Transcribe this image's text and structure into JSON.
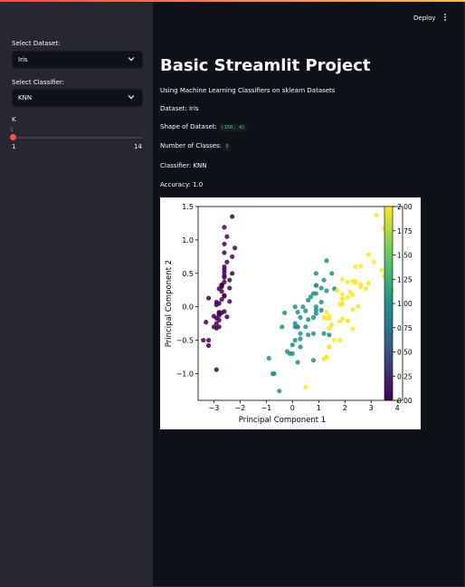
{
  "sidebar": {
    "dataset_label": "Select Dataset:",
    "dataset_value": "Iris",
    "classifier_label": "Select Classifier:",
    "classifier_value": "KNN",
    "k_label": "K",
    "k_value": "1",
    "k_min": "1",
    "k_max": "14"
  },
  "header": {
    "deploy_label": "Deploy"
  },
  "main": {
    "title": "Basic Streamlit Project",
    "subtitle": "Using Machine Learning Classifiers on sklearn Datasets",
    "dataset_text": "Dataset: Iris",
    "shape_label": "Shape of Dataset:",
    "shape_value": "(150, 4)",
    "classes_label": "Number of Classes:",
    "classes_value": "3",
    "classifier_text": "Classifier: KNN",
    "accuracy_text": "Accuracy: 1.0"
  },
  "colors": {
    "accent": "#ff4b4b",
    "class0": "#440154",
    "class1": "#21918c",
    "class2": "#fde725"
  },
  "chart_data": {
    "type": "scatter",
    "title": "",
    "xlabel": "Principal Component 1",
    "ylabel": "Principal Component 2",
    "xlim": [
      -3.6,
      4.2
    ],
    "ylim": [
      -1.4,
      1.5
    ],
    "xticks": [
      "−3",
      "−2",
      "−1",
      "0",
      "1",
      "2",
      "3",
      "4"
    ],
    "xtick_values": [
      -3,
      -2,
      -1,
      0,
      1,
      2,
      3,
      4
    ],
    "yticks": [
      "−1.0",
      "−0.5",
      "0.0",
      "0.5",
      "1.0",
      "1.5"
    ],
    "ytick_values": [
      -1.0,
      -0.5,
      0.0,
      0.5,
      1.0,
      1.5
    ],
    "colorbar_ticks": [
      "0.00",
      "0.25",
      "0.50",
      "0.75",
      "1.00",
      "1.25",
      "1.50",
      "1.75",
      "2.00"
    ],
    "colorbar_range": [
      0,
      2
    ],
    "colormap": "viridis",
    "grid": false,
    "series": [
      {
        "class": 0,
        "points": [
          [
            -2.7,
            0.32
          ],
          [
            -2.9,
            -0.17
          ],
          [
            -3.0,
            -0.14
          ],
          [
            -2.9,
            -0.32
          ],
          [
            -2.7,
            0.33
          ],
          [
            -2.3,
            0.75
          ],
          [
            -2.8,
            -0.08
          ],
          [
            -2.6,
            0.16
          ],
          [
            -3.2,
            -0.5
          ],
          [
            -2.8,
            -0.2
          ],
          [
            -2.5,
            0.67
          ],
          [
            -2.7,
            0.11
          ],
          [
            -2.9,
            -0.25
          ],
          [
            -3.4,
            -0.5
          ],
          [
            -2.6,
            1.19
          ],
          [
            -2.3,
            1.35
          ],
          [
            -2.6,
            0.81
          ],
          [
            -2.7,
            0.32
          ],
          [
            -2.2,
            0.88
          ],
          [
            -2.6,
            0.52
          ],
          [
            -2.4,
            0.4
          ],
          [
            -2.6,
            0.44
          ],
          [
            -3.2,
            0.13
          ],
          [
            -2.4,
            0.08
          ],
          [
            -2.6,
            -0.07
          ],
          [
            -2.8,
            -0.1
          ],
          [
            -2.6,
            0.17
          ],
          [
            -2.6,
            0.37
          ],
          [
            -2.7,
            0.3
          ],
          [
            -2.7,
            -0.09
          ],
          [
            -2.8,
            -0.13
          ],
          [
            -2.4,
            0.28
          ],
          [
            -2.6,
            0.94
          ],
          [
            -2.5,
            1.05
          ],
          [
            -2.8,
            -0.1
          ],
          [
            -2.9,
            0.03
          ],
          [
            -2.6,
            0.47
          ],
          [
            -2.9,
            0.07
          ],
          [
            -3.2,
            -0.58
          ],
          [
            -2.7,
            0.23
          ],
          [
            -2.8,
            0.27
          ],
          [
            -2.9,
            -0.94
          ],
          [
            -3.3,
            -0.23
          ],
          [
            -2.5,
            -0.15
          ],
          [
            -2.3,
            0.5
          ],
          [
            -2.8,
            -0.3
          ],
          [
            -2.6,
            0.56
          ],
          [
            -3.0,
            -0.3
          ],
          [
            -2.6,
            0.6
          ],
          [
            -2.8,
            0.05
          ]
        ]
      },
      {
        "class": 1,
        "points": [
          [
            1.3,
            0.69
          ],
          [
            0.9,
            0.32
          ],
          [
            1.5,
            0.5
          ],
          [
            0.2,
            -0.83
          ],
          [
            1.1,
            0.07
          ],
          [
            0.6,
            -0.42
          ],
          [
            1.1,
            0.28
          ],
          [
            -0.75,
            -1.0
          ],
          [
            0.9,
            0.2
          ],
          [
            -0.0,
            -0.7
          ],
          [
            -0.5,
            -1.26
          ],
          [
            0.5,
            -0.06
          ],
          [
            0.3,
            -0.6
          ],
          [
            0.9,
            -0.05
          ],
          [
            -0.3,
            -0.09
          ],
          [
            0.9,
            0.5
          ],
          [
            0.6,
            -0.19
          ],
          [
            0.2,
            -0.3
          ],
          [
            0.8,
            -0.8
          ],
          [
            0.0,
            -0.57
          ],
          [
            1.1,
            -0.05
          ],
          [
            0.4,
            0.0
          ],
          [
            1.2,
            -0.4
          ],
          [
            0.9,
            -0.1
          ],
          [
            0.7,
            0.15
          ],
          [
            0.9,
            0.32
          ],
          [
            1.3,
            0.24
          ],
          [
            1.6,
            0.27
          ],
          [
            0.8,
            -0.16
          ],
          [
            -0.4,
            -0.3
          ],
          [
            -0.1,
            -0.7
          ],
          [
            -0.2,
            -0.67
          ],
          [
            0.1,
            -0.3
          ],
          [
            1.4,
            -0.42
          ],
          [
            0.5,
            -0.3
          ],
          [
            0.8,
            0.2
          ],
          [
            1.2,
            0.4
          ],
          [
            0.8,
            -0.4
          ],
          [
            0.1,
            0.0
          ],
          [
            0.1,
            -0.5
          ],
          [
            0.3,
            -0.48
          ],
          [
            0.9,
            0.0
          ],
          [
            0.2,
            -0.3
          ],
          [
            -0.7,
            -1.0
          ],
          [
            0.3,
            -0.4
          ],
          [
            0.2,
            -0.08
          ],
          [
            0.3,
            -0.16
          ],
          [
            0.6,
            0.1
          ],
          [
            -0.9,
            -0.77
          ],
          [
            0.1,
            -0.25
          ]
        ]
      },
      {
        "class": 2,
        "points": [
          [
            2.5,
            0.01
          ],
          [
            1.4,
            -0.6
          ],
          [
            2.6,
            0.34
          ],
          [
            1.9,
            -0.18
          ],
          [
            2.3,
            -0.04
          ],
          [
            3.4,
            0.55
          ],
          [
            0.5,
            -1.2
          ],
          [
            2.9,
            0.35
          ],
          [
            2.3,
            -0.33
          ],
          [
            2.9,
            0.78
          ],
          [
            1.7,
            0.24
          ],
          [
            1.8,
            -0.22
          ],
          [
            2.2,
            0.22
          ],
          [
            1.3,
            -0.75
          ],
          [
            1.6,
            -0.5
          ],
          [
            1.9,
            0.12
          ],
          [
            1.9,
            0.04
          ],
          [
            3.5,
            1.17
          ],
          [
            3.8,
            0.25
          ],
          [
            1.3,
            -0.76
          ],
          [
            2.4,
            0.38
          ],
          [
            1.2,
            -0.78
          ],
          [
            3.5,
            0.46
          ],
          [
            1.4,
            -0.14
          ],
          [
            2.3,
            0.38
          ],
          [
            2.6,
            0.61
          ],
          [
            1.3,
            -0.17
          ],
          [
            1.3,
            -0.08
          ],
          [
            2.1,
            -0.21
          ],
          [
            2.4,
            0.6
          ],
          [
            2.8,
            0.27
          ],
          [
            3.2,
            1.37
          ],
          [
            2.1,
            -0.21
          ],
          [
            1.4,
            -0.17
          ],
          [
            1.8,
            -0.5
          ],
          [
            3.1,
            0.67
          ],
          [
            2.1,
            0.14
          ],
          [
            1.9,
            0.05
          ],
          [
            1.2,
            -0.16
          ],
          [
            2.1,
            0.37
          ],
          [
            2.3,
            0.18
          ],
          [
            1.9,
            0.41
          ],
          [
            1.4,
            -0.6
          ],
          [
            2.6,
            0.3
          ],
          [
            2.4,
            0.36
          ],
          [
            1.9,
            0.19
          ],
          [
            1.5,
            -0.27
          ],
          [
            1.8,
            0.04
          ],
          [
            1.9,
            0.12
          ],
          [
            1.4,
            -0.32
          ]
        ]
      }
    ]
  }
}
